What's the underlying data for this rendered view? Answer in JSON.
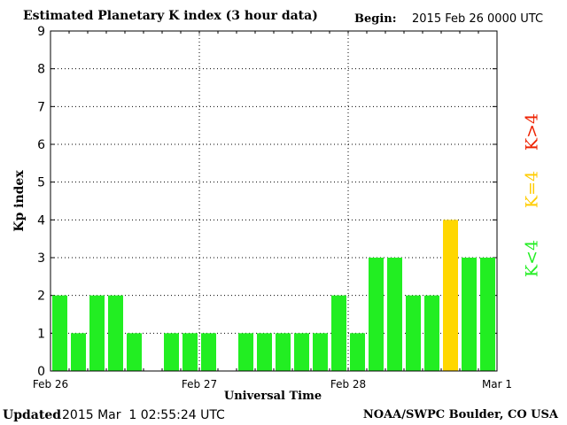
{
  "header": {
    "title": "Estimated Planetary K index (3 hour data)",
    "begin_label": "Begin:",
    "begin_value": "2015 Feb 26 0000 UTC"
  },
  "footer": {
    "updated_label": "Updated",
    "updated_value": "2015 Mar  1 02:55:24 UTC",
    "credit": "NOAA/SWPC Boulder, CO USA"
  },
  "legend": {
    "low": "K<4",
    "equal": "K=4",
    "high": "K>4"
  },
  "colors": {
    "low": "#22ee22",
    "equal": "#ffd700",
    "high": "#ee2200",
    "grid": "#000000"
  },
  "chart_data": {
    "type": "bar",
    "title": "Estimated Planetary K index (3 hour data)",
    "xlabel": "Universal Time",
    "ylabel": "Kp index",
    "ylim": [
      0,
      9
    ],
    "yticks": [
      0,
      1,
      2,
      3,
      4,
      5,
      6,
      7,
      8,
      9
    ],
    "xlim_intervals": [
      0,
      24
    ],
    "xticks": [
      {
        "interval": 0,
        "label": "Feb 26"
      },
      {
        "interval": 8,
        "label": "Feb 27"
      },
      {
        "interval": 16,
        "label": "Feb 28"
      },
      {
        "interval": 24,
        "label": "Mar 1"
      }
    ],
    "interval_hours": 3,
    "grid": "dotted, at days and each Kp level",
    "values": [
      2,
      1,
      2,
      2,
      1,
      null,
      1,
      1,
      1,
      null,
      1,
      1,
      1,
      1,
      1,
      2,
      1,
      3,
      3,
      2,
      2,
      4,
      3,
      3
    ],
    "color_rule": "green if K<4, yellow if K=4, red if K>4"
  }
}
